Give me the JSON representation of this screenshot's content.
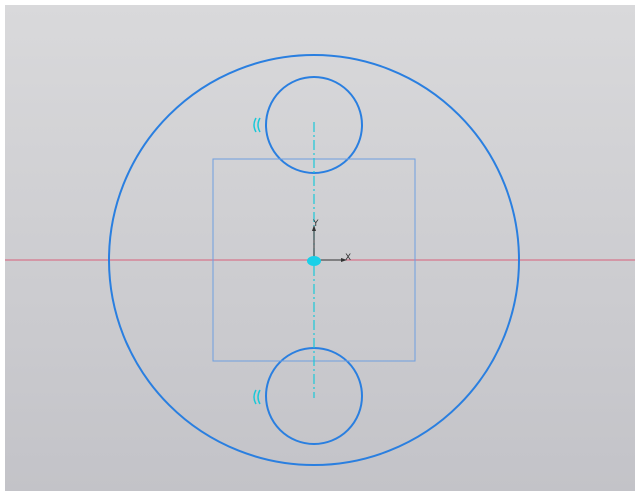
{
  "sketch": {
    "axis_labels": {
      "x": "X",
      "y": "Y"
    }
  }
}
